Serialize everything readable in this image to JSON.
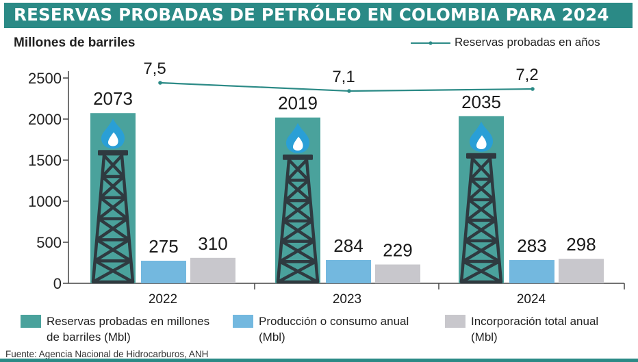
{
  "title": "RESERVAS PROBADAS DE PETRÓLEO EN COLOMBIA PARA 2024",
  "unit_label": "Millones de barriles",
  "line_legend_label": "Reservas probadas en años",
  "source": "Fuente: Agencia Nacional de Hidrocarburos, ANH",
  "colors": {
    "title_bg": "#2b8a86",
    "reserves": "#4aa29c",
    "production": "#73b8df",
    "incorporation": "#c8c7cc",
    "line": "#2b8a86",
    "derrick": "#2f3a40",
    "flame": "#2a9fd6"
  },
  "legend": [
    {
      "key": "reserves",
      "label": "Reservas probadas en millones de barriles (Mbl)"
    },
    {
      "key": "production",
      "label": "Producción o consumo anual (Mbl)"
    },
    {
      "key": "incorporation",
      "label": "Incorporación total anual (Mbl)"
    }
  ],
  "chart_data": {
    "type": "bar",
    "title": "RESERVAS PROBADAS DE PETRÓLEO EN COLOMBIA PARA 2024",
    "ylabel": "Millones de barriles",
    "ylim": [
      0,
      2500
    ],
    "yticks": [
      "0",
      "500",
      "1000",
      "1500",
      "2000",
      "2500"
    ],
    "categories": [
      "2022",
      "2023",
      "2024"
    ],
    "series": [
      {
        "name": "Reservas probadas en millones de barriles (Mbl)",
        "key": "reserves",
        "values": [
          2073,
          2019,
          2035
        ],
        "labels": [
          "2073",
          "2019",
          "2035"
        ]
      },
      {
        "name": "Producción o consumo anual (Mbl)",
        "key": "production",
        "values": [
          275,
          284,
          283
        ],
        "labels": [
          "275",
          "284",
          "283"
        ]
      },
      {
        "name": "Incorporación total anual (Mbl)",
        "key": "incorporation",
        "values": [
          310,
          229,
          298
        ],
        "labels": [
          "310",
          "229",
          "298"
        ]
      }
    ],
    "line_series": {
      "name": "Reservas probadas en años",
      "type": "line",
      "values": [
        7.5,
        7.1,
        7.2
      ],
      "labels": [
        "7,5",
        "7,1",
        "7,2"
      ]
    }
  }
}
